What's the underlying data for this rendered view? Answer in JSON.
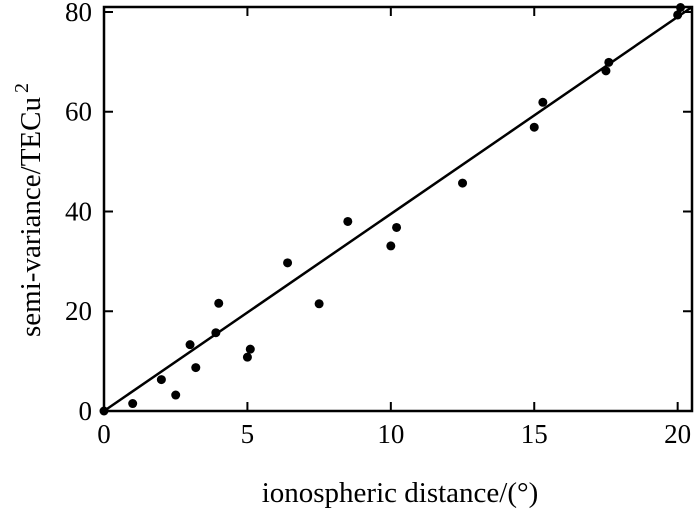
{
  "chart_data": {
    "type": "scatter",
    "title": "",
    "xlabel": "ionospheric distance/(°)",
    "ylabel_main": "semi-variance/TECu",
    "ylabel_sup": "2",
    "xlim": [
      0,
      20.5
    ],
    "ylim": [
      0,
      81
    ],
    "xticks": [
      0,
      5,
      10,
      15,
      20
    ],
    "yticks": [
      0,
      20,
      40,
      60,
      80
    ],
    "grid": false,
    "points": {
      "x": [
        0.0,
        1.0,
        2.0,
        2.5,
        3.0,
        3.2,
        3.9,
        4.0,
        5.0,
        5.1,
        6.4,
        7.5,
        8.5,
        10.0,
        10.2,
        12.5,
        15.0,
        15.3,
        17.5,
        17.6,
        20.0,
        20.1
      ],
      "y": [
        0.0,
        1.5,
        6.3,
        3.2,
        13.3,
        8.7,
        15.7,
        21.6,
        10.8,
        12.4,
        29.7,
        21.5,
        38.0,
        33.1,
        36.8,
        45.7,
        56.9,
        61.9,
        68.2,
        69.9,
        79.4,
        80.9
      ]
    },
    "fit_line": {
      "x": [
        0,
        20.5
      ],
      "y": [
        0,
        81.0
      ]
    }
  }
}
